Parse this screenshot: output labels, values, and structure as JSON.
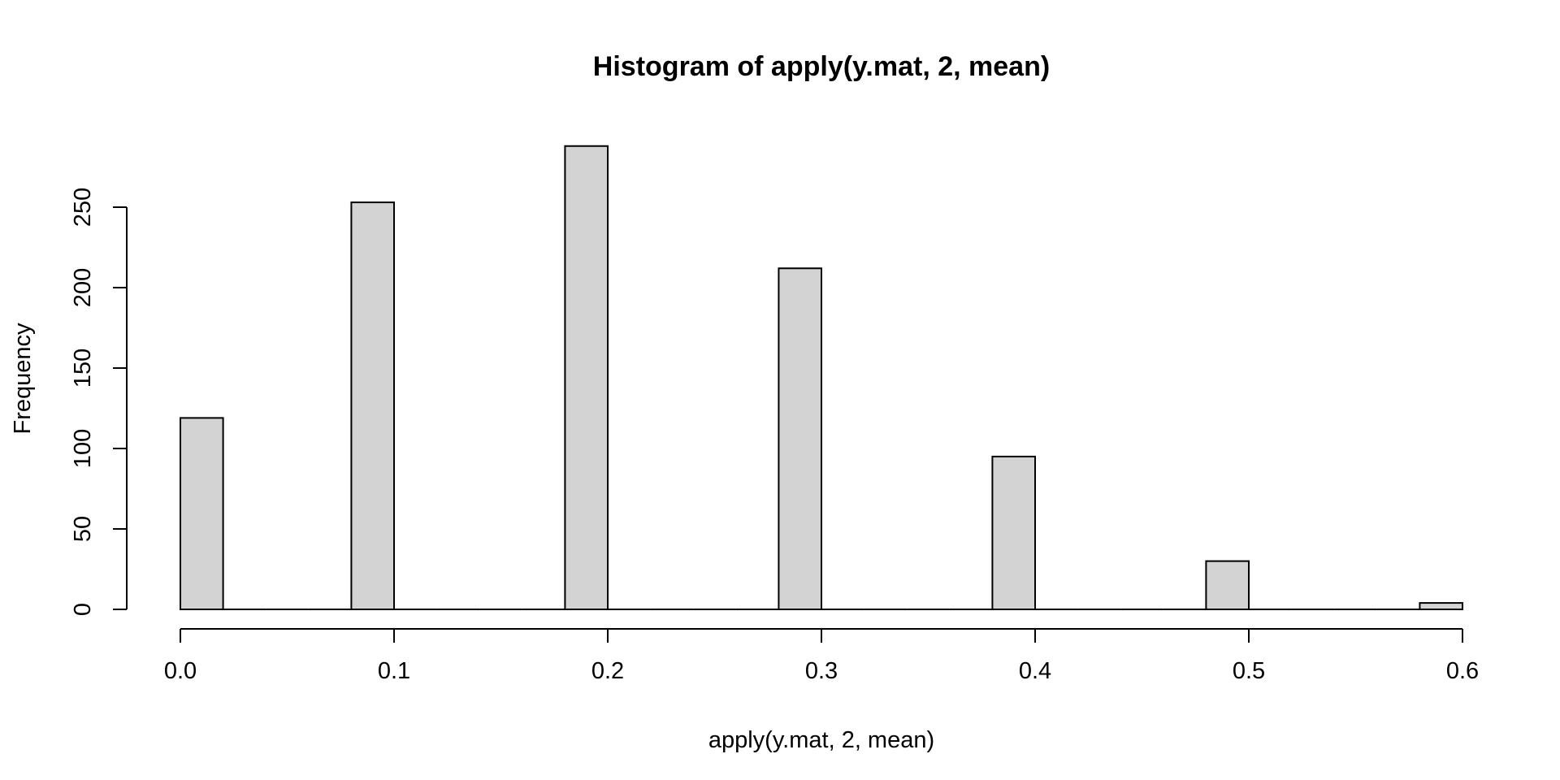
{
  "chart_data": {
    "type": "bar",
    "title": "Histogram of apply(y.mat, 2, mean)",
    "xlabel": "apply(y.mat, 2, mean)",
    "ylabel": "Frequency",
    "bins": [
      {
        "from": 0.0,
        "to": 0.02,
        "count": 119
      },
      {
        "from": 0.02,
        "to": 0.04,
        "count": 0
      },
      {
        "from": 0.04,
        "to": 0.06,
        "count": 0
      },
      {
        "from": 0.06,
        "to": 0.08,
        "count": 0
      },
      {
        "from": 0.08,
        "to": 0.1,
        "count": 253
      },
      {
        "from": 0.1,
        "to": 0.12,
        "count": 0
      },
      {
        "from": 0.12,
        "to": 0.14,
        "count": 0
      },
      {
        "from": 0.14,
        "to": 0.16,
        "count": 0
      },
      {
        "from": 0.16,
        "to": 0.18,
        "count": 0
      },
      {
        "from": 0.18,
        "to": 0.2,
        "count": 288
      },
      {
        "from": 0.2,
        "to": 0.22,
        "count": 0
      },
      {
        "from": 0.22,
        "to": 0.24,
        "count": 0
      },
      {
        "from": 0.24,
        "to": 0.26,
        "count": 0
      },
      {
        "from": 0.26,
        "to": 0.28,
        "count": 0
      },
      {
        "from": 0.28,
        "to": 0.3,
        "count": 212
      },
      {
        "from": 0.3,
        "to": 0.32,
        "count": 0
      },
      {
        "from": 0.32,
        "to": 0.34,
        "count": 0
      },
      {
        "from": 0.34,
        "to": 0.36,
        "count": 0
      },
      {
        "from": 0.36,
        "to": 0.38,
        "count": 0
      },
      {
        "from": 0.38,
        "to": 0.4,
        "count": 95
      },
      {
        "from": 0.4,
        "to": 0.42,
        "count": 0
      },
      {
        "from": 0.42,
        "to": 0.44,
        "count": 0
      },
      {
        "from": 0.44,
        "to": 0.46,
        "count": 0
      },
      {
        "from": 0.46,
        "to": 0.48,
        "count": 0
      },
      {
        "from": 0.48,
        "to": 0.5,
        "count": 30
      },
      {
        "from": 0.5,
        "to": 0.52,
        "count": 0
      },
      {
        "from": 0.52,
        "to": 0.54,
        "count": 0
      },
      {
        "from": 0.54,
        "to": 0.56,
        "count": 0
      },
      {
        "from": 0.56,
        "to": 0.58,
        "count": 0
      },
      {
        "from": 0.58,
        "to": 0.6,
        "count": 4
      }
    ],
    "x_ticks": [
      0.0,
      0.1,
      0.2,
      0.3,
      0.4,
      0.5,
      0.6
    ],
    "x_tick_labels": [
      "0.0",
      "0.1",
      "0.2",
      "0.3",
      "0.4",
      "0.5",
      "0.6"
    ],
    "y_ticks": [
      0,
      50,
      100,
      150,
      200,
      250
    ],
    "y_tick_labels": [
      "0",
      "50",
      "100",
      "150",
      "200",
      "250"
    ],
    "xlim": [
      0.0,
      0.6
    ],
    "ylim": [
      0,
      300
    ],
    "grid": false,
    "colors": {
      "bar_fill": "#d3d3d3",
      "bar_stroke": "#000000",
      "axis": "#000000",
      "background": "#ffffff"
    }
  }
}
